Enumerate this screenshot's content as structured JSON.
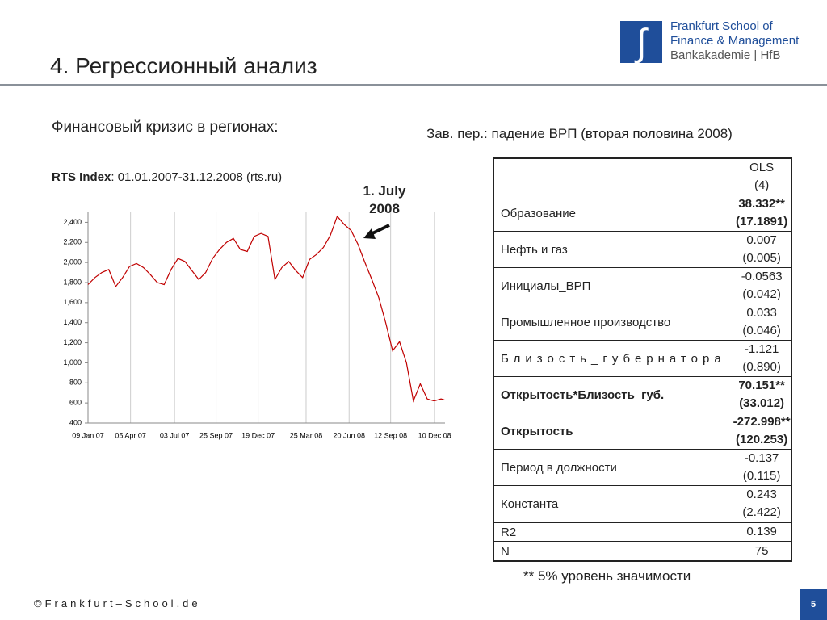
{
  "header": {
    "title": "4. Регрессионный анализ",
    "logo_lines": [
      "Frankfurt School of",
      "Finance & Management",
      "Bankakademie | HfB"
    ]
  },
  "left": {
    "heading": "Финансовый кризис в регионах:",
    "source_label": "RTS Index",
    "source_text": ":  01.01.2007-31.12.2008 (rts.ru)"
  },
  "chart_data": {
    "type": "line",
    "annotation": "1. July 2008",
    "color": "#c00000",
    "grid": "x",
    "x": [
      "2007-01-09",
      "2007-01-23",
      "2007-02-06",
      "2007-02-20",
      "2007-03-06",
      "2007-03-20",
      "2007-04-03",
      "2007-04-17",
      "2007-05-01",
      "2007-05-15",
      "2007-05-29",
      "2007-06-12",
      "2007-06-26",
      "2007-07-10",
      "2007-07-24",
      "2007-08-07",
      "2007-08-21",
      "2007-09-04",
      "2007-09-18",
      "2007-10-02",
      "2007-10-16",
      "2007-10-30",
      "2007-11-13",
      "2007-11-27",
      "2007-12-11",
      "2007-12-25",
      "2008-01-08",
      "2008-01-22",
      "2008-02-05",
      "2008-02-19",
      "2008-03-04",
      "2008-03-18",
      "2008-04-01",
      "2008-04-15",
      "2008-04-29",
      "2008-05-13",
      "2008-05-27",
      "2008-06-10",
      "2008-06-24",
      "2008-07-08",
      "2008-07-22",
      "2008-08-05",
      "2008-08-19",
      "2008-09-02",
      "2008-09-16",
      "2008-09-30",
      "2008-10-14",
      "2008-10-28",
      "2008-11-11",
      "2008-11-25",
      "2008-12-09",
      "2008-12-23",
      "2008-12-30"
    ],
    "values": [
      1780,
      1850,
      1900,
      1930,
      1760,
      1850,
      1960,
      1990,
      1950,
      1880,
      1800,
      1780,
      1930,
      2040,
      2010,
      1920,
      1830,
      1900,
      2040,
      2130,
      2200,
      2240,
      2130,
      2110,
      2260,
      2290,
      2260,
      1830,
      1950,
      2010,
      1920,
      1850,
      2030,
      2080,
      2150,
      2270,
      2460,
      2380,
      2320,
      2180,
      2000,
      1830,
      1650,
      1400,
      1120,
      1210,
      1000,
      620,
      790,
      640,
      620,
      640,
      630
    ],
    "xlim": [
      "2007-01-09",
      "2008-12-31"
    ],
    "xticks": [
      {
        "value": "2007-01-09",
        "label": "09 Jan 07"
      },
      {
        "value": "2007-04-05",
        "label": "05 Apr 07"
      },
      {
        "value": "2007-07-03",
        "label": "03 Jul 07"
      },
      {
        "value": "2007-09-25",
        "label": "25 Sep 07"
      },
      {
        "value": "2007-12-19",
        "label": "19 Dec 07"
      },
      {
        "value": "2008-03-25",
        "label": "25 Mar 08"
      },
      {
        "value": "2008-06-20",
        "label": "20 Jun 08"
      },
      {
        "value": "2008-09-12",
        "label": "12 Sep 08"
      },
      {
        "value": "2008-12-10",
        "label": "10 Dec 08"
      }
    ],
    "ylim": [
      400,
      2500
    ],
    "yticks": [
      400,
      600,
      800,
      {
        "value": 1000,
        "label": "1,000"
      },
      {
        "value": 1200,
        "label": "1,200"
      },
      {
        "value": 1400,
        "label": "1,400"
      },
      {
        "value": 1600,
        "label": "1,600"
      },
      {
        "value": 1800,
        "label": "1,800"
      },
      {
        "value": 2000,
        "label": "2,000"
      },
      {
        "value": 2200,
        "label": "2,200"
      },
      {
        "value": 2400,
        "label": "2,400"
      }
    ]
  },
  "right": {
    "heading": "Зав. пер.: падение ВРП (вторая половина 2008)",
    "footnote": "** 5% уровень значимости"
  },
  "table": {
    "header": [
      "OLS",
      "(4)"
    ],
    "rows": [
      {
        "label": "Образование",
        "coef": "38.332**",
        "se": "(17.1891)",
        "bold": false,
        "bold_values": true
      },
      {
        "label": "Нефть и газ",
        "coef": "0.007",
        "se": "(0.005)",
        "bold": false,
        "bold_values": false
      },
      {
        "label": "Инициалы_ВРП",
        "coef": "-0.0563",
        "se": "(0.042)",
        "bold": false,
        "bold_values": false
      },
      {
        "label": "Промышленное производство",
        "coef": "0.033",
        "se": "(0.046)",
        "bold": false,
        "bold_values": false
      },
      {
        "label": "Близость_губернатора",
        "coef": "-1.121",
        "se": "(0.890)",
        "bold": false,
        "bold_values": false,
        "spaced": true
      },
      {
        "label": "Открытость*Близость_губ.",
        "coef": "70.151**",
        "se": "(33.012)",
        "bold": true,
        "bold_values": true
      },
      {
        "label": "Открытость",
        "coef": "-272.998**",
        "se": "(120.253)",
        "bold": true,
        "bold_values": true
      },
      {
        "label": "Период в должности",
        "coef": "-0.137",
        "se": "(0.115)",
        "bold": false,
        "bold_values": false
      },
      {
        "label": "Константа",
        "coef": "0.243",
        "se": "(2.422)",
        "bold": false,
        "bold_values": false
      }
    ],
    "stats": [
      {
        "label": "R2",
        "value": "0.139"
      },
      {
        "label": "N",
        "value": "75"
      }
    ]
  },
  "footer": {
    "copyright": "©Frankfurt–School.de",
    "page": "5"
  }
}
